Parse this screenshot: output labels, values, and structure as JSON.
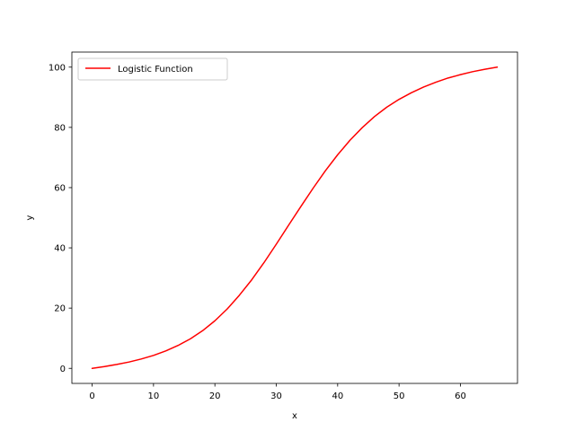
{
  "chart_data": {
    "type": "line",
    "title": "",
    "xlabel": "x",
    "ylabel": "y",
    "xlim": [
      -3.3,
      69.3
    ],
    "ylim": [
      -5,
      105
    ],
    "xticks": [
      0,
      10,
      20,
      30,
      40,
      50,
      60
    ],
    "yticks": [
      0,
      20,
      40,
      60,
      80,
      100
    ],
    "grid": false,
    "legend_position": "top-left",
    "series": [
      {
        "name": "Logistic Function",
        "color": "#ff0000",
        "x": [
          0,
          2,
          4,
          6,
          8,
          10,
          12,
          14,
          16,
          18,
          20,
          22,
          24,
          26,
          28,
          30,
          32,
          34,
          36,
          38,
          40,
          42,
          44,
          46,
          48,
          50,
          52,
          54,
          56,
          58,
          60,
          62,
          64,
          66
        ],
        "y": [
          0.0,
          0.6,
          1.3,
          2.1,
          3.1,
          4.3,
          5.8,
          7.6,
          9.8,
          12.5,
          15.8,
          19.7,
          24.3,
          29.4,
          35.1,
          41.2,
          47.5,
          53.7,
          59.8,
          65.6,
          70.9,
          75.7,
          79.9,
          83.6,
          86.7,
          89.3,
          91.5,
          93.4,
          95.0,
          96.4,
          97.5,
          98.5,
          99.3,
          100.0
        ]
      }
    ]
  }
}
